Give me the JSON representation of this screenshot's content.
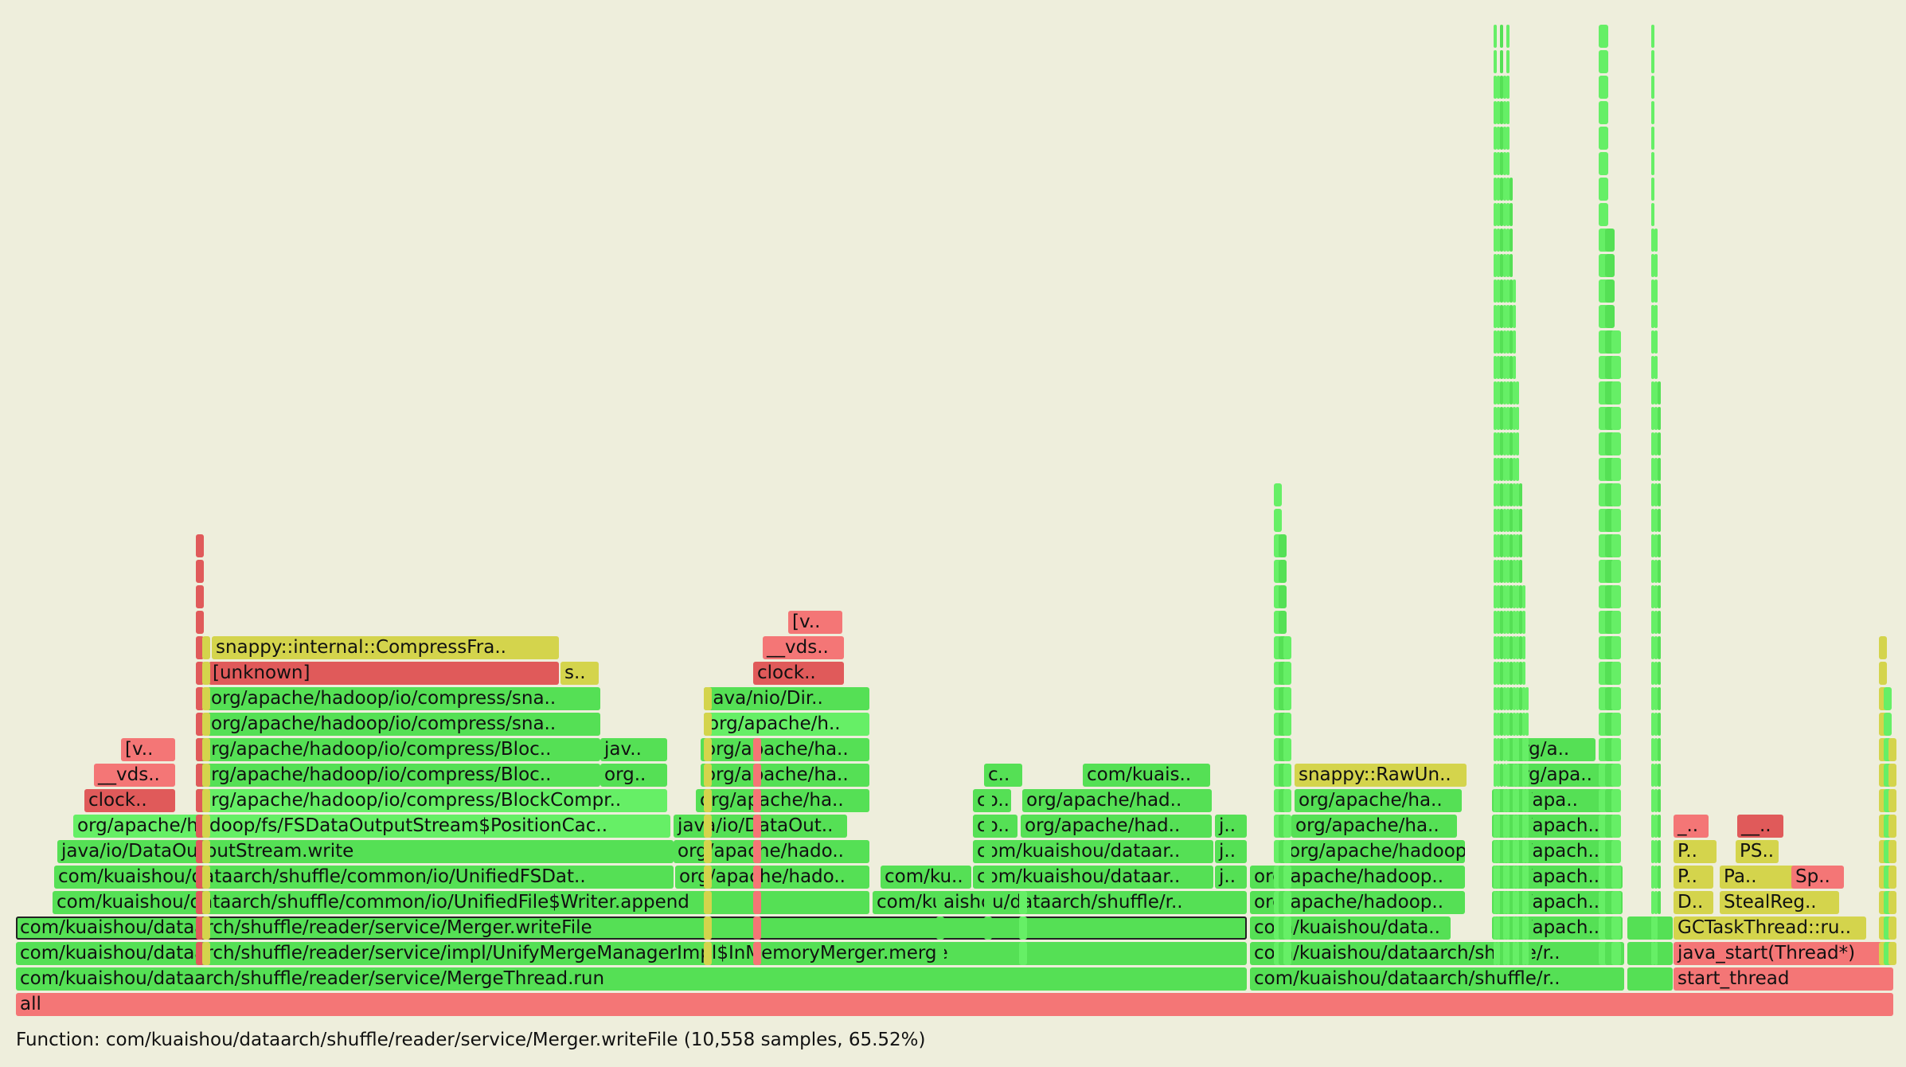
{
  "colors": {
    "background": "#eeeedc",
    "green": "#55e055",
    "green_light": "#66ef66",
    "red": "#f47676",
    "red_dark": "#e05a5a",
    "yellow": "#d4d44c"
  },
  "frames": [
    {
      "label": "all",
      "d": 0,
      "c": "#f47676"
    },
    {
      "label": "com/kuaishou/dataarch/shuffle/reader/service/MergeThread.run",
      "d": 1,
      "c": "#55e055"
    },
    {
      "label": "com/kuaishou/dataarch/shuffle/r..",
      "d": 1,
      "c": "#55e055"
    },
    {
      "label": "",
      "d": 1,
      "c": "#55e055"
    },
    {
      "label": "start_thread",
      "d": 1,
      "c": "#f47676"
    },
    {
      "label": "com/kuaishou/dataarch/shuffle/reader/service/impl/UnifyMergeManagerImpl$InMemoryMerger.merge",
      "d": 2,
      "c": "#55e055"
    },
    {
      "label": "com/kuaishou/dataarch/shuffle/r..",
      "d": 2,
      "c": "#55e055"
    },
    {
      "label": "",
      "d": 2,
      "c": "#55e055"
    },
    {
      "label": "java_start(Thread*)",
      "d": 2,
      "c": "#f47676"
    },
    {
      "label": "com/kuaishou/dataarch/shuffle/reader/service/Merger.writeFile",
      "d": 3,
      "c": "#55e055",
      "sel": true
    },
    {
      "label": "com/kuaishou/data..",
      "d": 3,
      "c": "#55e055"
    },
    {
      "label": "org/apach..",
      "d": 3,
      "c": "#55e055"
    },
    {
      "label": "",
      "d": 3,
      "c": "#55e055"
    },
    {
      "label": "GCTaskThread::ru..",
      "d": 3,
      "c": "#d4d44c"
    },
    {
      "label": "com/kuaishou/dataarch/shuffle/common/io/UnifiedFile$Writer.append",
      "d": 4,
      "c": "#55e055"
    },
    {
      "label": "com/kuaishou/dataarch/shuffle/r..",
      "d": 4,
      "c": "#55e055"
    },
    {
      "label": "org/apache/hadoop..",
      "d": 4,
      "c": "#55e055"
    },
    {
      "label": "org/apach..",
      "d": 4,
      "c": "#55e055"
    },
    {
      "label": "D..",
      "d": 4,
      "c": "#d4d44c"
    },
    {
      "label": "StealReg..",
      "d": 4,
      "c": "#d4d44c"
    },
    {
      "label": "com/kuaishou/dataarch/shuffle/common/io/UnifiedFSDat..",
      "d": 5,
      "c": "#55e055"
    },
    {
      "label": "org/apache/hado..",
      "d": 5,
      "c": "#55e055"
    },
    {
      "label": "com/ku..",
      "d": 5,
      "c": "#55e055"
    },
    {
      "label": "com/kuaishou/dataar..",
      "d": 5,
      "c": "#55e055"
    },
    {
      "label": "j..",
      "d": 5,
      "c": "#55e055"
    },
    {
      "label": "org/apache/hadoop..",
      "d": 5,
      "c": "#55e055"
    },
    {
      "label": "org/apach..",
      "d": 5,
      "c": "#55e055"
    },
    {
      "label": "P..",
      "d": 5,
      "c": "#d4d44c"
    },
    {
      "label": "Pa..",
      "d": 5,
      "c": "#d4d44c"
    },
    {
      "label": "Sp..",
      "d": 5,
      "c": "#f47676"
    },
    {
      "label": "java/io/DataOutputStream.write",
      "d": 6,
      "c": "#55e055"
    },
    {
      "label": "org/apache/hado..",
      "d": 6,
      "c": "#55e055"
    },
    {
      "label": "com/kuaishou/dataar..",
      "d": 6,
      "c": "#55e055"
    },
    {
      "label": "j..",
      "d": 6,
      "c": "#55e055"
    },
    {
      "label": "org/apache/hadoop..",
      "d": 6,
      "c": "#55e055"
    },
    {
      "label": "org/apach..",
      "d": 6,
      "c": "#55e055"
    },
    {
      "label": "P..",
      "d": 6,
      "c": "#d4d44c"
    },
    {
      "label": "PS..",
      "d": 6,
      "c": "#d4d44c"
    },
    {
      "label": "org/apache/hadoop/fs/FSDataOutputStream$PositionCac..",
      "d": 7,
      "c": "#66ef66"
    },
    {
      "label": "java/io/DataOut..",
      "d": 7,
      "c": "#55e055"
    },
    {
      "label": "co..",
      "d": 7,
      "c": "#55e055"
    },
    {
      "label": "org/apache/had..",
      "d": 7,
      "c": "#55e055"
    },
    {
      "label": "j..",
      "d": 7,
      "c": "#55e055"
    },
    {
      "label": "org/apache/ha..",
      "d": 7,
      "c": "#55e055"
    },
    {
      "label": "org/apach..",
      "d": 7,
      "c": "#55e055"
    },
    {
      "label": "_..",
      "d": 7,
      "c": "#f47676"
    },
    {
      "label": "__..",
      "d": 7,
      "c": "#e05a5a"
    },
    {
      "label": "clock..",
      "d": 8,
      "c": "#e05a5a"
    },
    {
      "label": "org/apache/hadoop/io/compress/BlockCompr..",
      "d": 8,
      "c": "#66ef66"
    },
    {
      "label": "org/apache/ha..",
      "d": 8,
      "c": "#55e055"
    },
    {
      "label": "co..",
      "d": 8,
      "c": "#55e055"
    },
    {
      "label": "org/apache/had..",
      "d": 8,
      "c": "#55e055"
    },
    {
      "label": "org/apache/ha..",
      "d": 8,
      "c": "#55e055"
    },
    {
      "label": "org/apa..",
      "d": 8,
      "c": "#55e055"
    },
    {
      "label": "__vds..",
      "d": 9,
      "c": "#f47676"
    },
    {
      "label": "org/apache/hadoop/io/compress/Bloc..",
      "d": 9,
      "c": "#55e055"
    },
    {
      "label": "org..",
      "d": 9,
      "c": "#55e055"
    },
    {
      "label": "org/apache/ha..",
      "d": 9,
      "c": "#55e055"
    },
    {
      "label": "c..",
      "d": 9,
      "c": "#55e055"
    },
    {
      "label": "com/kuais..",
      "d": 9,
      "c": "#55e055"
    },
    {
      "label": "snappy::RawUn..",
      "d": 9,
      "c": "#d4d44c"
    },
    {
      "label": "org/apa..",
      "d": 9,
      "c": "#55e055"
    },
    {
      "label": "[v..",
      "d": 10,
      "c": "#f47676"
    },
    {
      "label": "org/apache/hadoop/io/compress/Bloc..",
      "d": 10,
      "c": "#55e055"
    },
    {
      "label": "jav..",
      "d": 10,
      "c": "#55e055"
    },
    {
      "label": "org/apache/ha..",
      "d": 10,
      "c": "#55e055"
    },
    {
      "label": "org/a..",
      "d": 10,
      "c": "#55e055"
    },
    {
      "label": "org/apache/hadoop/io/compress/sna..",
      "d": 11,
      "c": "#55e055"
    },
    {
      "label": "org/apache/h..",
      "d": 11,
      "c": "#66ef66"
    },
    {
      "label": "org/apache/hadoop/io/compress/sna..",
      "d": 12,
      "c": "#55e055"
    },
    {
      "label": "java/nio/Dir..",
      "d": 12,
      "c": "#55e055"
    },
    {
      "label": "[unknown]",
      "d": 13,
      "c": "#e05a5a"
    },
    {
      "label": "s..",
      "d": 13,
      "c": "#d4d44c"
    },
    {
      "label": "clock..",
      "d": 13,
      "c": "#e05a5a"
    },
    {
      "label": "snappy::internal::CompressFra..",
      "d": 14,
      "c": "#d4d44c"
    },
    {
      "label": "__vds..",
      "d": 14,
      "c": "#f47676"
    },
    {
      "label": "[v..",
      "d": 15,
      "c": "#f47676"
    }
  ],
  "status": {
    "text": "Function: com/kuaishou/dataarch/shuffle/reader/service/Merger.writeFile (10,558 samples, 65.52%)"
  }
}
